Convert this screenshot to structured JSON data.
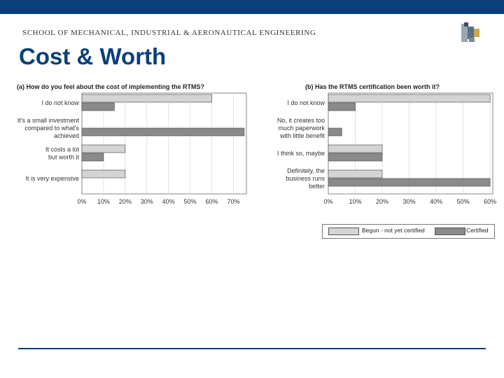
{
  "header": {
    "school": "SCHOOL OF MECHANICAL, INDUSTRIAL & AERONAUTICAL ENGINEERING",
    "title": "Cost & Worth"
  },
  "colors": {
    "brand": "#0b3f7a",
    "begun": "#d4d4d4",
    "certified": "#8a8a8a"
  },
  "legend": {
    "begun": "Begun - not yet certified",
    "certified": "Certified"
  },
  "chart_data": [
    {
      "type": "bar",
      "orientation": "horizontal",
      "title": "(a) How do you feel about the cost of implementing the RTMS?",
      "categories": [
        [
          "I do not know"
        ],
        [
          "It's a small investment",
          "compared to what's",
          "achieved"
        ],
        [
          "It costs a lot",
          "but worth it"
        ],
        [
          "It is very expensive"
        ]
      ],
      "series": [
        {
          "name": "Begun - not yet certified",
          "values": [
            60,
            0,
            20,
            20
          ]
        },
        {
          "name": "Certified",
          "values": [
            15,
            75,
            10,
            0
          ]
        }
      ],
      "xticks": [
        "0%",
        "10%",
        "20%",
        "30%",
        "40%",
        "50%",
        "60%",
        "70%"
      ],
      "xlim": [
        0,
        76
      ],
      "grid": true
    },
    {
      "type": "bar",
      "orientation": "horizontal",
      "title": "(b) Has the RTMS certification been worth it?",
      "categories": [
        [
          "I do not know"
        ],
        [
          "No, it creates too",
          "much paperwork",
          "with little benefit"
        ],
        [
          "I think so, maybe"
        ],
        [
          "Definitely, the",
          "business runs",
          "better"
        ]
      ],
      "series": [
        {
          "name": "Begun - not yet certified",
          "values": [
            60,
            0,
            20,
            20
          ]
        },
        {
          "name": "Certified",
          "values": [
            10,
            5,
            20,
            60
          ]
        }
      ],
      "xticks": [
        "0%",
        "10%",
        "20%",
        "30%",
        "40%",
        "50%",
        "60%"
      ],
      "xlim": [
        0,
        61
      ],
      "grid": true
    }
  ]
}
